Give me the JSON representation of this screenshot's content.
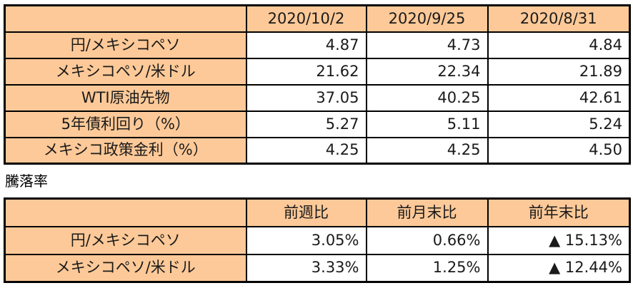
{
  "section_title": "騰落率",
  "colors": {
    "cell_fill": "#FDC998",
    "border": "#000000",
    "text": "#1A1A1A",
    "bg": "#FFFFFF"
  },
  "chart_data": [
    {
      "type": "table",
      "title": "",
      "columns": [
        "",
        "2020/10/2",
        "2020/9/25",
        "2020/8/31"
      ],
      "rows": [
        [
          "円/メキシコペソ",
          "4.87",
          "4.73",
          "4.84"
        ],
        [
          "メキシコペソ/米ドル",
          "21.62",
          "22.34",
          "21.89"
        ],
        [
          "WTI原油先物",
          "37.05",
          "40.25",
          "42.61"
        ],
        [
          "5年債利回り（%）",
          "5.27",
          "5.11",
          "5.24"
        ],
        [
          "メキシコ政策金利（%）",
          "4.25",
          "4.25",
          "4.50"
        ]
      ],
      "layout": {
        "label_column_align": "center",
        "value_align": "right",
        "grid": "on"
      }
    },
    {
      "type": "table",
      "title": "騰落率",
      "columns": [
        "",
        "前週比",
        "前月末比",
        "前年末比"
      ],
      "rows": [
        [
          "円/メキシコペソ",
          "3.05%",
          "0.66%",
          "▲ 15.13%"
        ],
        [
          "メキシコペソ/米ドル",
          "3.33%",
          "1.25%",
          "▲ 12.44%"
        ]
      ],
      "layout": {
        "label_column_align": "center",
        "value_align": "right",
        "grid": "on",
        "negative_marker": "▲"
      }
    }
  ]
}
